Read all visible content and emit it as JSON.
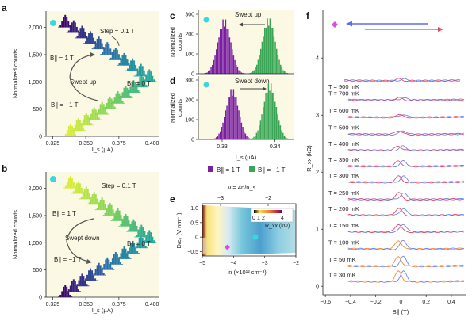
{
  "colors": {
    "purple": "#7b1fa2",
    "green": "#3aa655",
    "dot_cyan": "#3cd6e0",
    "dot_magenta": "#d44fe0",
    "red_trace": "#e8475f",
    "blue_trace": "#5b6fe6",
    "orange_trace": "#f08a3c"
  },
  "chart_data": [
    {
      "panel": "a",
      "type": "bar",
      "xlabel": "I_s (µA)",
      "ylabel": "Normalized counts",
      "xticks": [
        "0.325",
        "0.350",
        "0.375",
        "0.400"
      ],
      "yticks": [
        "0",
        "500",
        "1,000",
        "1,500",
        "2,000"
      ],
      "xlim": [
        0.32,
        0.405
      ],
      "ylim": [
        0,
        2300
      ],
      "annotations": [
        "Step = 0.1 T",
        "B∥ = 1 T",
        "B∥ = −1 T",
        "B∥ = 0 T",
        "Swept up"
      ],
      "series": [
        {
          "field_T": -1.0,
          "center_uA": 0.3385,
          "offset": 0
        },
        {
          "field_T": 1.0,
          "center_uA": 0.3345,
          "offset": 2000
        }
      ]
    },
    {
      "panel": "b",
      "type": "bar",
      "xlabel": "I_s (µA)",
      "ylabel": "Normalized counts",
      "xticks": [
        "0.325",
        "0.350",
        "0.375",
        "0.400"
      ],
      "yticks": [
        "0",
        "500",
        "1,000",
        "1,500",
        "2,000"
      ],
      "xlim": [
        0.32,
        0.405
      ],
      "ylim": [
        0,
        2300
      ],
      "annotations": [
        "Step = 0.1 T",
        "B∥ = 1 T",
        "B∥ = −1 T",
        "B∥ = 0 T",
        "Swept down"
      ],
      "series": [
        {
          "field_T": -1.0,
          "center_uA": 0.3345,
          "offset": 0
        },
        {
          "field_T": 1.0,
          "center_uA": 0.3385,
          "offset": 2000
        }
      ]
    },
    {
      "panel": "c",
      "type": "bar",
      "xlabel": "",
      "ylabel": "Normalized counts",
      "yticks": [
        "0",
        "100",
        "200",
        "300"
      ],
      "xlim": [
        0.3255,
        0.3435
      ],
      "ylim": [
        0,
        320
      ],
      "annotations": [
        "Swept up"
      ],
      "series": [
        {
          "name": "B∥ = 1 T",
          "center_uA": 0.3303,
          "peak": 280
        },
        {
          "name": "B∥ = −1 T",
          "center_uA": 0.3387,
          "peak": 285
        }
      ]
    },
    {
      "panel": "d",
      "type": "bar",
      "xlabel": "I_s (µA)",
      "ylabel": "Normalized counts",
      "xticks": [
        "0.33",
        "0.34"
      ],
      "yticks": [
        "0",
        "100",
        "200",
        "300"
      ],
      "xlim": [
        0.3255,
        0.3435
      ],
      "ylim": [
        0,
        320
      ],
      "annotations": [
        "Swept down"
      ],
      "series": [
        {
          "name": "B∥ = 1 T",
          "center_uA": 0.3318,
          "peak": 260
        },
        {
          "name": "B∥ = −1 T",
          "center_uA": 0.3389,
          "peak": 290
        }
      ],
      "legend": [
        "B∥ = 1 T",
        "B∥ = −1 T"
      ]
    },
    {
      "panel": "e",
      "type": "heatmap",
      "xlabel": "n (×10¹² cm⁻³)",
      "ylabel": "D/ε₀ (V nm⁻¹)",
      "toplabel": "ν = 4n/n_s",
      "xticks": [
        "−5",
        "−4",
        "−3",
        "−2"
      ],
      "yticks": [
        "−0.5",
        "0",
        "0.5",
        "1.0"
      ],
      "topticks": [
        "−3",
        "−2"
      ],
      "xlim": [
        -5,
        -2
      ],
      "ylim": [
        -0.65,
        1.15
      ],
      "colorbar": {
        "label": "R_xx (kΩ)",
        "ticks": [
          "0",
          "1",
          "2",
          "4"
        ]
      },
      "markers": [
        {
          "color": "cyan",
          "n": -3.3,
          "D": 0.0
        },
        {
          "color": "magenta",
          "n": -4.2,
          "D": -0.35
        }
      ]
    },
    {
      "panel": "f",
      "type": "line",
      "xlabel": "B∥ (T)",
      "ylabel": "R_xx (kΩ)",
      "xticks": [
        "−0.6",
        "−0.4",
        "−0.2",
        "0",
        "0.2",
        "0.4"
      ],
      "yticks": [
        "0",
        "1",
        "2",
        "3",
        "4"
      ],
      "xlim": [
        -0.62,
        0.52
      ],
      "ylim": [
        -0.15,
        4.85
      ],
      "traces": [
        {
          "label": "T = 30 mK",
          "offset": 0.08
        },
        {
          "label": "T = 50 mK",
          "offset": 0.35
        },
        {
          "label": "T = 100 mK",
          "offset": 0.65
        },
        {
          "label": "T = 150 mK",
          "offset": 0.95
        },
        {
          "label": "T = 200 mK",
          "offset": 1.24
        },
        {
          "label": "T = 250 mK",
          "offset": 1.52
        },
        {
          "label": "T = 300 mK",
          "offset": 1.82
        },
        {
          "label": "T = 350 mK",
          "offset": 2.1
        },
        {
          "label": "T = 400 mK",
          "offset": 2.38
        },
        {
          "label": "T = 500 mK",
          "offset": 2.66
        },
        {
          "label": "T = 600 mK",
          "offset": 2.96
        },
        {
          "label": "T = 700 mK",
          "offset": 3.26
        },
        {
          "label": "T = 900 mK",
          "offset": 3.6
        }
      ]
    }
  ],
  "text": {
    "a": "a",
    "b": "b",
    "c": "c",
    "d": "d",
    "e": "e",
    "f": "f",
    "step": "Step = 0.1 T",
    "b1": "B∥ = 1 T",
    "bm1": "B∥ = −1 T",
    "b0": "B∥ = 0 T",
    "swept_up": "Swept up",
    "swept_down": "Swept down",
    "ylabel_counts_1": "Normalized counts",
    "ylabel_counts_2a": "Normalized",
    "ylabel_counts_2b": "counts",
    "is_label": "I_s (µA)",
    "legend_1": "B∥ = 1 T",
    "legend_2": "B∥ = −1 T",
    "e_top": "ν = 4n/n_s",
    "e_x": "n (×10¹² cm⁻³)",
    "e_y": "D/ε₀ (V nm⁻¹)",
    "e_cbar": "R_xx (kΩ)",
    "f_x": "B∥ (T)",
    "f_y": "R_xx (kΩ)"
  }
}
